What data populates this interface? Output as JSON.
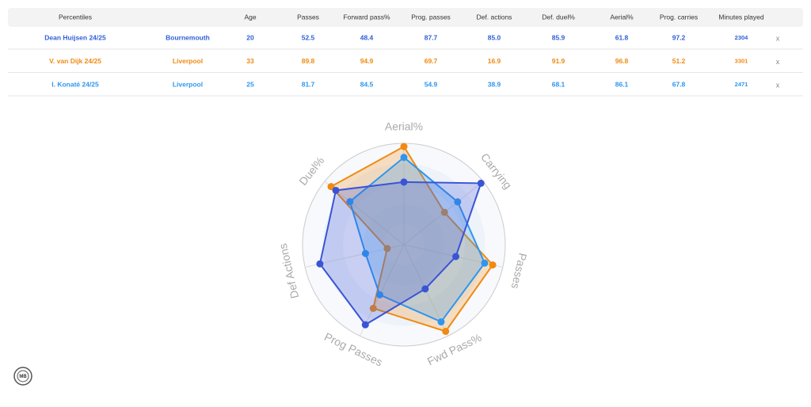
{
  "table": {
    "headers": [
      "Percentiles",
      "Age",
      "Passes",
      "Forward pass%",
      "Prog. passes",
      "Def. actions",
      "Def. duel%",
      "Aerial%",
      "Prog. carries",
      "Minutes played"
    ],
    "rows": [
      {
        "color": "#2f5fd8",
        "cells": [
          "Dean Huijsen 24/25",
          "Bournemouth",
          "20",
          "52.5",
          "48.4",
          "87.7",
          "85.0",
          "85.9",
          "61.8",
          "97.2",
          "2304"
        ],
        "remove": "x"
      },
      {
        "color": "#f08a12",
        "cells": [
          "V. van Dijk 24/25",
          "Liverpool",
          "33",
          "89.8",
          "94.9",
          "69.7",
          "16.9",
          "91.9",
          "96.8",
          "51.2",
          "3301"
        ],
        "remove": "x"
      },
      {
        "color": "#2f96ee",
        "cells": [
          "I. Konaté 24/25",
          "Liverpool",
          "25",
          "81.7",
          "84.5",
          "54.9",
          "38.9",
          "68.1",
          "86.1",
          "67.8",
          "2471"
        ],
        "remove": "x"
      }
    ]
  },
  "chart_data": {
    "type": "radar",
    "axes": [
      "Aerial%",
      "Carrying",
      "Passes",
      "Fwd Pass%",
      "Prog Passes",
      "Def Actions",
      "Duel%"
    ],
    "rlim": [
      0,
      100
    ],
    "series": [
      {
        "color": "#f08a12",
        "values": [
          96.8,
          51.2,
          89.8,
          94.9,
          69.7,
          16.9,
          91.9
        ]
      },
      {
        "color": "#2f96ee",
        "values": [
          86.1,
          67.8,
          81.7,
          84.5,
          54.9,
          38.9,
          68.1
        ]
      },
      {
        "color": "#3a54d6",
        "values": [
          61.8,
          97.2,
          52.5,
          48.4,
          87.7,
          85.0,
          85.9
        ]
      }
    ]
  },
  "logo": "MB"
}
